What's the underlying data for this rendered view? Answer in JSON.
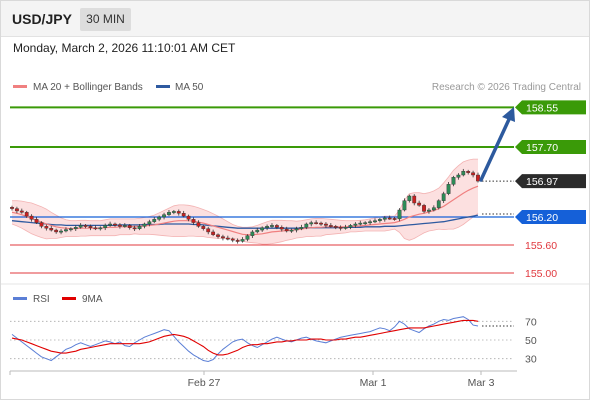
{
  "header": {
    "symbol": "USD/JPY",
    "timeframe": "30 MIN",
    "datetime": "Monday, March 2, 2026 11:10:01 AM CET"
  },
  "legend": {
    "ma20": {
      "label": "MA 20 + Bollinger Bands",
      "color": "#f08080"
    },
    "ma50": {
      "label": "MA 50",
      "color": "#2e5aa0"
    },
    "copyright": "Research © 2026 Trading Central"
  },
  "rsi_legend": {
    "rsi": {
      "label": "RSI",
      "color": "#5b7fd6"
    },
    "ma9": {
      "label": "9MA",
      "color": "#e00000"
    }
  },
  "colors": {
    "resistance": "#3a9a08",
    "support": "#e0383e",
    "current": "#2b2b2b",
    "pivot": "#1560d8",
    "arrow": "#2d5a9e",
    "band": "#fbdada",
    "bull": "#2e8b57",
    "bear": "#c82020"
  },
  "chart_data": [
    {
      "type": "candlestick",
      "ylim": [
        154.85,
        158.75
      ],
      "x_labels": [
        "Feb 27",
        "Mar 1",
        "Mar 3"
      ],
      "levels": [
        {
          "value": "158.55",
          "kind": "resistance"
        },
        {
          "value": "157.70",
          "kind": "resistance"
        },
        {
          "value": "156.97",
          "kind": "current"
        },
        {
          "value": "156.20",
          "kind": "pivot"
        },
        {
          "value": "155.60",
          "kind": "support"
        },
        {
          "value": "155.00",
          "kind": "support"
        }
      ],
      "close": [
        156.38,
        156.33,
        156.3,
        156.22,
        156.15,
        156.08,
        156.0,
        155.96,
        155.92,
        155.88,
        155.9,
        155.93,
        155.95,
        155.98,
        156.02,
        156.0,
        155.97,
        155.95,
        155.97,
        156.02,
        156.05,
        156.03,
        156.0,
        156.02,
        155.97,
        155.95,
        156.0,
        156.05,
        156.1,
        156.15,
        156.2,
        156.25,
        156.3,
        156.32,
        156.28,
        156.22,
        156.15,
        156.08,
        156.0,
        155.95,
        155.88,
        155.82,
        155.78,
        155.75,
        155.73,
        155.7,
        155.68,
        155.72,
        155.8,
        155.88,
        155.92,
        155.97,
        156.0,
        156.02,
        155.98,
        155.94,
        155.9,
        155.92,
        155.95,
        155.98,
        156.05,
        156.08,
        156.07,
        156.05,
        156.02,
        156.0,
        155.98,
        155.96,
        155.98,
        156.02,
        156.05,
        156.07,
        156.08,
        156.1,
        156.12,
        156.15,
        156.18,
        156.17,
        156.16,
        156.35,
        156.55,
        156.65,
        156.5,
        156.45,
        156.32,
        156.35,
        156.4,
        156.55,
        156.7,
        156.9,
        157.05,
        157.1,
        157.18,
        157.15,
        157.1,
        156.97
      ],
      "ma20": [
        156.3,
        156.28,
        156.25,
        156.21,
        156.17,
        156.13,
        156.09,
        156.05,
        156.02,
        155.99,
        155.97,
        155.96,
        155.95,
        155.95,
        155.96,
        155.96,
        155.96,
        155.96,
        155.96,
        155.97,
        155.98,
        155.98,
        155.99,
        155.99,
        155.99,
        156.0,
        156.0,
        156.01,
        156.02,
        156.03,
        156.05,
        156.07,
        156.09,
        156.11,
        156.12,
        156.12,
        156.12,
        156.11,
        156.09,
        156.07,
        156.04,
        156.01,
        155.98,
        155.95,
        155.92,
        155.89,
        155.86,
        155.83,
        155.82,
        155.82,
        155.83,
        155.84,
        155.86,
        155.88,
        155.89,
        155.9,
        155.91,
        155.92,
        155.93,
        155.94,
        155.96,
        155.97,
        155.98,
        155.98,
        155.99,
        155.99,
        155.99,
        155.99,
        155.99,
        156.0,
        156.0,
        156.01,
        156.02,
        156.03,
        156.04,
        156.05,
        156.06,
        156.07,
        156.08,
        156.11,
        156.15,
        156.2,
        156.23,
        156.26,
        156.28,
        156.31,
        156.34,
        156.38,
        156.43,
        156.5,
        156.57,
        156.64,
        156.71,
        156.77,
        156.82,
        156.86
      ],
      "ma50": [
        156.12,
        156.11,
        156.1,
        156.09,
        156.08,
        156.07,
        156.06,
        156.05,
        156.04,
        156.03,
        156.03,
        156.02,
        156.02,
        156.02,
        156.02,
        156.02,
        156.02,
        156.02,
        156.02,
        156.02,
        156.02,
        156.02,
        156.03,
        156.03,
        156.03,
        156.03,
        156.03,
        156.04,
        156.04,
        156.04,
        156.04,
        156.05,
        156.05,
        156.05,
        156.05,
        156.05,
        156.05,
        156.04,
        156.04,
        156.03,
        156.02,
        156.01,
        156.0,
        155.99,
        155.98,
        155.97,
        155.96,
        155.96,
        155.96,
        155.96,
        155.96,
        155.96,
        155.96,
        155.96,
        155.96,
        155.96,
        155.96,
        155.96,
        155.96,
        155.96,
        155.96,
        155.97,
        155.97,
        155.97,
        155.97,
        155.97,
        155.97,
        155.98,
        155.98,
        155.98,
        155.98,
        155.98,
        155.99,
        155.99,
        155.99,
        155.99,
        156.0,
        156.0,
        156.0,
        156.01,
        156.02,
        156.03,
        156.04,
        156.05,
        156.06,
        156.07,
        156.08,
        156.09,
        156.1,
        156.12,
        156.14,
        156.16,
        156.18,
        156.2,
        156.22,
        156.24
      ],
      "bb_upper": [
        156.55,
        156.55,
        156.54,
        156.52,
        156.5,
        156.46,
        156.42,
        156.37,
        156.3,
        156.24,
        156.18,
        156.14,
        156.12,
        156.12,
        156.13,
        156.13,
        156.12,
        156.12,
        156.12,
        156.14,
        156.16,
        156.16,
        156.16,
        156.16,
        156.16,
        156.16,
        156.17,
        156.19,
        156.21,
        156.24,
        156.29,
        156.34,
        156.39,
        156.44,
        156.46,
        156.46,
        156.45,
        156.43,
        156.4,
        156.36,
        156.32,
        156.27,
        156.22,
        156.16,
        156.1,
        156.04,
        156.0,
        155.98,
        155.98,
        155.99,
        156.02,
        156.06,
        156.1,
        156.13,
        156.13,
        156.13,
        156.12,
        156.12,
        156.11,
        156.12,
        156.14,
        156.16,
        156.17,
        156.17,
        156.16,
        156.15,
        156.14,
        156.13,
        156.12,
        156.12,
        156.12,
        156.13,
        156.14,
        156.16,
        156.18,
        156.2,
        156.22,
        156.22,
        156.22,
        156.35,
        156.56,
        156.7,
        156.72,
        156.72,
        156.7,
        156.72,
        156.76,
        156.82,
        156.93,
        157.06,
        157.2,
        157.3,
        157.38,
        157.42,
        157.44,
        157.44
      ],
      "bb_lower": [
        156.05,
        156.01,
        155.96,
        155.9,
        155.84,
        155.8,
        155.76,
        155.73,
        155.74,
        155.74,
        155.76,
        155.78,
        155.78,
        155.78,
        155.79,
        155.79,
        155.8,
        155.8,
        155.8,
        155.8,
        155.8,
        155.8,
        155.82,
        155.82,
        155.82,
        155.84,
        155.83,
        155.83,
        155.83,
        155.82,
        155.81,
        155.8,
        155.79,
        155.78,
        155.78,
        155.78,
        155.79,
        155.79,
        155.78,
        155.78,
        155.76,
        155.75,
        155.74,
        155.74,
        155.74,
        155.74,
        155.72,
        155.68,
        155.66,
        155.65,
        155.64,
        155.62,
        155.62,
        155.63,
        155.65,
        155.67,
        155.7,
        155.72,
        155.75,
        155.76,
        155.78,
        155.78,
        155.79,
        155.79,
        155.82,
        155.83,
        155.84,
        155.85,
        155.86,
        155.88,
        155.88,
        155.89,
        155.9,
        155.9,
        155.9,
        155.9,
        155.9,
        155.92,
        155.94,
        155.87,
        155.74,
        155.7,
        155.74,
        155.8,
        155.86,
        155.9,
        155.92,
        155.94,
        155.93,
        155.94,
        155.94,
        155.98,
        156.04,
        156.12,
        156.2,
        156.28
      ]
    },
    {
      "type": "line",
      "ylim": [
        20,
        80
      ],
      "y_ticks": [
        "70",
        "50",
        "30"
      ],
      "rsi": [
        56,
        52,
        48,
        44,
        40,
        36,
        32,
        30,
        28,
        32,
        36,
        40,
        42,
        45,
        47,
        45,
        43,
        45,
        47,
        49,
        48,
        46,
        48,
        44,
        43,
        47,
        50,
        53,
        55,
        57,
        59,
        61,
        60,
        54,
        48,
        43,
        38,
        34,
        31,
        28,
        27,
        29,
        35,
        40,
        44,
        48,
        50,
        51,
        47,
        44,
        42,
        45,
        48,
        51,
        53,
        51,
        49,
        48,
        50,
        52,
        53,
        51,
        49,
        48,
        47,
        49,
        51,
        53,
        54,
        55,
        56,
        57,
        58,
        59,
        61,
        63,
        62,
        60,
        64,
        70,
        67,
        62,
        60,
        58,
        62,
        65,
        67,
        70,
        72,
        71,
        73,
        74,
        75,
        72,
        66,
        65
      ],
      "ma9": [
        52,
        51,
        50,
        48,
        46,
        44,
        42,
        40,
        38,
        37,
        36,
        36,
        37,
        38,
        40,
        41,
        42,
        43,
        44,
        45,
        46,
        46,
        46,
        46,
        46,
        46,
        46,
        47,
        48,
        50,
        52,
        54,
        55,
        56,
        55,
        54,
        52,
        49,
        46,
        43,
        39,
        36,
        34,
        34,
        35,
        37,
        39,
        42,
        44,
        45,
        45,
        46,
        46,
        47,
        48,
        48,
        49,
        49,
        50,
        50,
        50,
        51,
        51,
        51,
        50,
        50,
        50,
        51,
        51,
        52,
        53,
        53,
        54,
        55,
        56,
        57,
        58,
        59,
        60,
        61,
        62,
        63,
        63,
        63,
        63,
        64,
        65,
        66,
        67,
        68,
        69,
        70,
        71,
        71,
        71,
        70
      ]
    }
  ]
}
